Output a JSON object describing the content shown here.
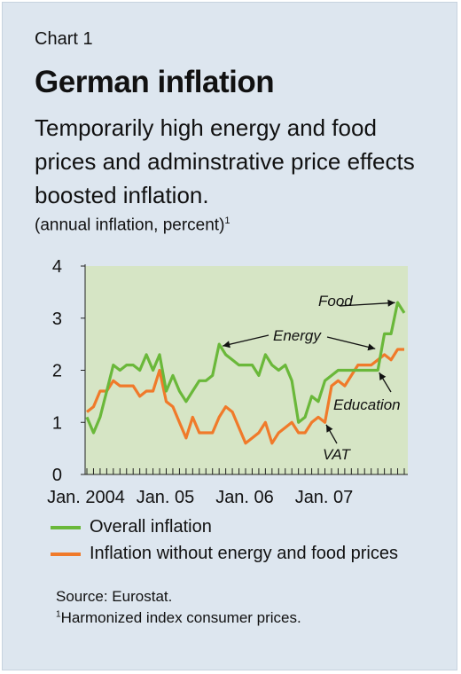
{
  "header": {
    "chart_number": "Chart 1",
    "title": "German inflation",
    "subtitle": "Temporarily high energy and food prices and adminstrative price effects boosted inflation.",
    "units": "(annual inflation, percent)",
    "units_note_marker": "1"
  },
  "footer": {
    "source": "Source: Eurostat.",
    "footnote_marker": "1",
    "footnote": "Harmonized index consumer prices."
  },
  "colors": {
    "overall": "#6ab83a",
    "core": "#f07a2a",
    "plot_background": "#d6e5c5",
    "panel_background": "#dde6ef"
  },
  "chart_data": {
    "type": "line",
    "title": "German inflation",
    "ylabel": "annual inflation, percent",
    "ylim": [
      0,
      4
    ],
    "y_ticks": [
      "0",
      "1",
      "2",
      "3",
      "4"
    ],
    "x_tick_labels": [
      {
        "label": "Jan. 2004",
        "index": 0
      },
      {
        "label": "Jan. 05",
        "index": 12
      },
      {
        "label": "Jan. 06",
        "index": 24
      },
      {
        "label": "Jan. 07",
        "index": 36
      }
    ],
    "months": 48,
    "legend_placement": "bottom",
    "series": [
      {
        "name": "Overall inflation",
        "color": "#6ab83a",
        "values": [
          1.1,
          0.8,
          1.1,
          1.6,
          2.1,
          2.0,
          2.1,
          2.1,
          2.0,
          2.3,
          2.0,
          2.3,
          1.6,
          1.9,
          1.6,
          1.4,
          1.6,
          1.8,
          1.8,
          1.9,
          2.5,
          2.3,
          2.2,
          2.1,
          2.1,
          2.1,
          1.9,
          2.3,
          2.1,
          2.0,
          2.1,
          1.8,
          1.0,
          1.1,
          1.5,
          1.4,
          1.8,
          1.9,
          2.0,
          2.0,
          2.0,
          2.0,
          2.0,
          2.0,
          2.0,
          2.7,
          2.7,
          3.3,
          3.1
        ]
      },
      {
        "name": "Inflation without energy and food prices",
        "color": "#f07a2a",
        "values": [
          1.2,
          1.3,
          1.6,
          1.6,
          1.8,
          1.7,
          1.7,
          1.7,
          1.5,
          1.6,
          1.6,
          2.0,
          1.4,
          1.3,
          1.0,
          0.7,
          1.1,
          0.8,
          0.8,
          0.8,
          1.1,
          1.3,
          1.2,
          0.9,
          0.6,
          0.7,
          0.8,
          1.0,
          0.6,
          0.8,
          0.9,
          1.0,
          0.8,
          0.8,
          1.0,
          1.1,
          1.0,
          1.7,
          1.8,
          1.7,
          1.9,
          2.1,
          2.1,
          2.1,
          2.2,
          2.3,
          2.2,
          2.4,
          2.4
        ]
      }
    ],
    "annotations": [
      {
        "label": "Food",
        "point": [
          47,
          3.3
        ]
      },
      {
        "label": "Energy",
        "point": [
          44,
          2.4
        ]
      },
      {
        "label": "Education",
        "point": [
          44,
          2.0
        ]
      },
      {
        "label": "VAT",
        "point": [
          36,
          1.0
        ]
      }
    ]
  }
}
